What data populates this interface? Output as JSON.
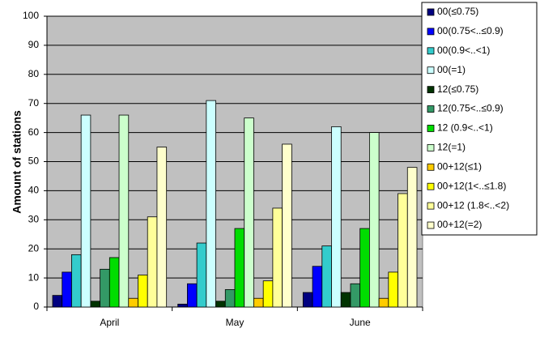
{
  "chart_data": {
    "type": "bar",
    "y_label": "Amount of stations",
    "categories": [
      "April",
      "May",
      "June"
    ],
    "series": [
      {
        "name": "00(≤0.75)",
        "color": "#000080",
        "values": [
          4,
          1,
          5
        ]
      },
      {
        "name": "00(0.75<..≤0.9)",
        "color": "#0000ff",
        "values": [
          12,
          8,
          14
        ]
      },
      {
        "name": "00(0.9<..<1)",
        "color": "#33cccc",
        "values": [
          18,
          22,
          21
        ]
      },
      {
        "name": "00(=1)",
        "color": "#ccffff",
        "values": [
          66,
          71,
          62
        ]
      },
      {
        "name": "12(≤0.75)",
        "color": "#003300",
        "values": [
          2,
          2,
          5
        ]
      },
      {
        "name": "12(0.75<..≤0.9)",
        "color": "#339966",
        "values": [
          13,
          6,
          8
        ]
      },
      {
        "name": "12 (0.9<..<1)",
        "color": "#00dd00",
        "values": [
          17,
          27,
          27
        ]
      },
      {
        "name": "12(=1)",
        "color": "#ccffcc",
        "values": [
          66,
          65,
          60
        ]
      },
      {
        "name": "00+12(≤1)",
        "color": "#ffcc00",
        "values": [
          3,
          3,
          3
        ]
      },
      {
        "name": "00+12(1<..≤1.8)",
        "color": "#ffff00",
        "values": [
          11,
          9,
          12
        ]
      },
      {
        "name": "00+12 (1.8<..<2)",
        "color": "#ffff99",
        "values": [
          31,
          34,
          39
        ]
      },
      {
        "name": "00+12(=2)",
        "color": "#ffffcc",
        "values": [
          55,
          56,
          48
        ]
      }
    ],
    "ylim": [
      0,
      100
    ],
    "yticks": [
      0,
      10,
      20,
      30,
      40,
      50,
      60,
      70,
      80,
      90,
      100
    ],
    "grid": true,
    "legend": "right",
    "plot_background": "#c0c0c0"
  }
}
